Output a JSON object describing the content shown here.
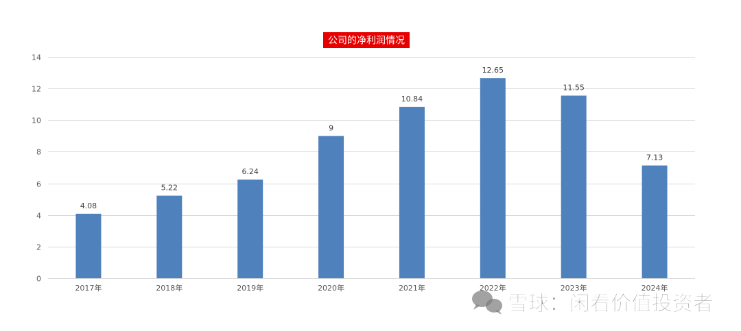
{
  "chart_data": {
    "type": "bar",
    "title": "公司的净利润情况",
    "categories": [
      "2017年",
      "2018年",
      "2019年",
      "2020年",
      "2021年",
      "2022年",
      "2023年",
      "2024年"
    ],
    "values": [
      4.08,
      5.22,
      6.24,
      9,
      10.84,
      12.65,
      11.55,
      7.13
    ],
    "ylim": [
      0,
      14
    ],
    "yticks": [
      0,
      2,
      4,
      6,
      8,
      10,
      12,
      14
    ],
    "grid": true,
    "data_labels": true,
    "colors": {
      "bar": "#4F81BD",
      "title_background": "#E60000",
      "title_text": "#FFFFFF",
      "gridline": "#D9D9D9"
    }
  },
  "watermark": {
    "icon": "wechat-icon",
    "text": "雪球：闲看价值投资者"
  }
}
